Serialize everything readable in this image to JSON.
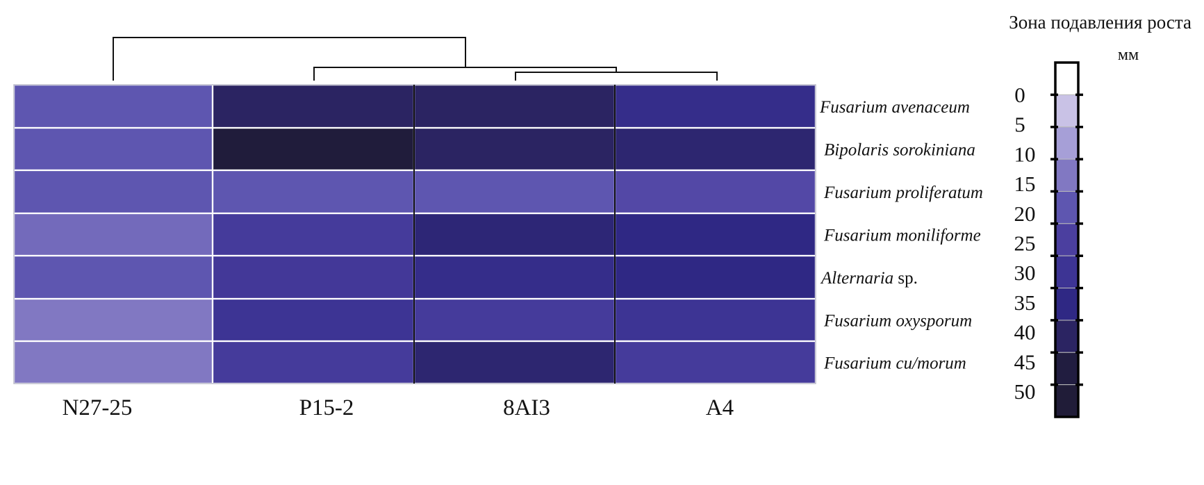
{
  "chart_data": {
    "type": "heatmap",
    "columns": [
      "N27-25",
      "P15-2",
      "8AI3",
      "A4"
    ],
    "rows": [
      {
        "label_italic": "Fusarium avenaceum",
        "label_plain": ""
      },
      {
        "label_italic": "Bipolaris sorokiniana",
        "label_plain": ""
      },
      {
        "label_italic": "Fusarium proliferatum",
        "label_plain": ""
      },
      {
        "label_italic": "Fusarium moniliforme",
        "label_plain": ""
      },
      {
        "label_italic": "Alternaria",
        "label_plain": " sp."
      },
      {
        "label_italic": "Fusarium oxysporum",
        "label_plain": ""
      },
      {
        "label_italic": "Fusarium cu/morum",
        "label_plain": ""
      }
    ],
    "values": [
      [
        20,
        40,
        40,
        33
      ],
      [
        20,
        48,
        40,
        38
      ],
      [
        20,
        20,
        20,
        23
      ],
      [
        17,
        27,
        37,
        35
      ],
      [
        20,
        28,
        33,
        35
      ],
      [
        15,
        30,
        27,
        30
      ],
      [
        15,
        27,
        38,
        27
      ]
    ],
    "colorscale": {
      "title": "Зона подавления роста",
      "unit": "мм",
      "ticks": [
        "0",
        "5",
        "10",
        "15",
        "20",
        "25",
        "30",
        "35",
        "40",
        "45",
        "50"
      ],
      "colors": [
        "#ffffff",
        "#c9c2e6",
        "#a69fd7",
        "#8178c2",
        "#5e56b0",
        "#4b3f9f",
        "#3d3494",
        "#2f2884",
        "#2b2462",
        "#211d40",
        "#201c38"
      ]
    },
    "dendrogram": "((N27-25),(P15-2,(8AI3,A4)))"
  }
}
